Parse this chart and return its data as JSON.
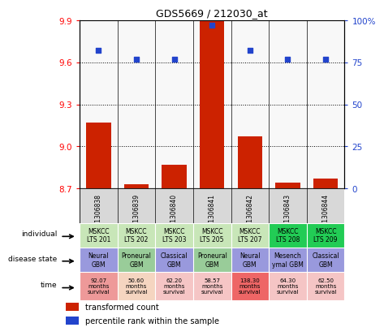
{
  "title": "GDS5669 / 212030_at",
  "samples": [
    "GSM1306838",
    "GSM1306839",
    "GSM1306840",
    "GSM1306841",
    "GSM1306842",
    "GSM1306843",
    "GSM1306844"
  ],
  "transformed_count": [
    9.17,
    8.73,
    8.87,
    9.9,
    9.07,
    8.74,
    8.77
  ],
  "percentile_rank": [
    82,
    77,
    77,
    97,
    82,
    77,
    77
  ],
  "ylim_left": [
    8.7,
    9.9
  ],
  "ylim_right": [
    0,
    100
  ],
  "yticks_left": [
    8.7,
    9.0,
    9.3,
    9.6,
    9.9
  ],
  "yticks_right": [
    0,
    25,
    50,
    75,
    100
  ],
  "individual_labels": [
    "MSKCC\nLTS 201",
    "MSKCC\nLTS 202",
    "MSKCC\nLTS 203",
    "MSKCC\nLTS 205",
    "MSKCC\nLTS 207",
    "MSKCC\nLTS 208",
    "MSKCC\nLTS 209"
  ],
  "individual_colors": [
    "#c8e6b8",
    "#c8e6b8",
    "#c8e6b8",
    "#c8e6b8",
    "#c8e6b8",
    "#22cc55",
    "#22cc55"
  ],
  "disease_state_labels": [
    "Neural\nGBM",
    "Proneural\nGBM",
    "Classical\nGBM",
    "Proneural\nGBM",
    "Neural\nGBM",
    "Mesench\nymal GBM",
    "Classical\nGBM"
  ],
  "disease_state_colors": [
    "#9999dd",
    "#99cc99",
    "#9999dd",
    "#99cc99",
    "#9999dd",
    "#9999dd",
    "#9999dd"
  ],
  "time_labels": [
    "92.07\nmonths\nsurvival",
    "50.60\nmonths\nsurvival",
    "62.20\nmonths\nsurvival",
    "58.57\nmonths\nsurvival",
    "138.30\nmonths\nsurvival",
    "64.30\nmonths\nsurvival",
    "62.50\nmonths\nsurvival"
  ],
  "time_colors": [
    "#ee9999",
    "#f5d5c0",
    "#f5c5c5",
    "#f5c5c5",
    "#ee6666",
    "#f5c5c5",
    "#f5c5c5"
  ],
  "bar_color": "#cc2200",
  "dot_color": "#2244cc",
  "legend_items": [
    "transformed count",
    "percentile rank within the sample"
  ],
  "legend_colors": [
    "#cc2200",
    "#2244cc"
  ],
  "plot_bg": "#f8f8f8",
  "sample_area_bg": "#d8d8d8"
}
